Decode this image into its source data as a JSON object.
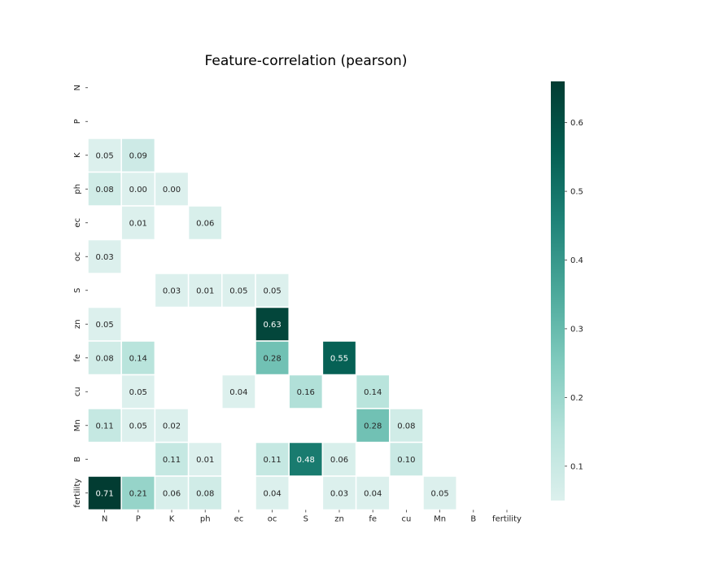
{
  "chart_data": {
    "type": "heatmap",
    "title": "Feature-correlation (pearson)",
    "xlabel": "",
    "ylabel": "",
    "x_categories": [
      "N",
      "P",
      "K",
      "ph",
      "ec",
      "oc",
      "S",
      "zn",
      "fe",
      "cu",
      "Mn",
      "B",
      "fertility"
    ],
    "y_categories": [
      "N",
      "P",
      "K",
      "ph",
      "ec",
      "oc",
      "S",
      "zn",
      "fe",
      "cu",
      "Mn",
      "B",
      "fertility"
    ],
    "values": [
      [
        null,
        null,
        null,
        null,
        null,
        null,
        null,
        null,
        null,
        null,
        null,
        null,
        null
      ],
      [
        null,
        null,
        null,
        null,
        null,
        null,
        null,
        null,
        null,
        null,
        null,
        null,
        null
      ],
      [
        0.05,
        0.09,
        null,
        null,
        null,
        null,
        null,
        null,
        null,
        null,
        null,
        null,
        null
      ],
      [
        0.08,
        0.0,
        0.0,
        null,
        null,
        null,
        null,
        null,
        null,
        null,
        null,
        null,
        null
      ],
      [
        null,
        0.01,
        null,
        0.06,
        null,
        null,
        null,
        null,
        null,
        null,
        null,
        null,
        null
      ],
      [
        0.03,
        null,
        null,
        null,
        null,
        null,
        null,
        null,
        null,
        null,
        null,
        null,
        null
      ],
      [
        null,
        null,
        0.03,
        0.01,
        0.05,
        0.05,
        null,
        null,
        null,
        null,
        null,
        null,
        null
      ],
      [
        0.05,
        null,
        null,
        null,
        null,
        0.63,
        null,
        null,
        null,
        null,
        null,
        null,
        null
      ],
      [
        0.08,
        0.14,
        null,
        null,
        null,
        0.28,
        null,
        0.55,
        null,
        null,
        null,
        null,
        null
      ],
      [
        null,
        0.05,
        null,
        null,
        0.04,
        null,
        0.16,
        null,
        0.14,
        null,
        null,
        null,
        null
      ],
      [
        0.11,
        0.05,
        0.02,
        null,
        null,
        null,
        null,
        null,
        0.28,
        0.08,
        null,
        null,
        null
      ],
      [
        null,
        null,
        0.11,
        0.01,
        null,
        0.11,
        0.48,
        0.06,
        null,
        0.1,
        null,
        null,
        null
      ],
      [
        0.71,
        0.21,
        0.06,
        0.08,
        null,
        0.04,
        null,
        0.03,
        0.04,
        null,
        0.05,
        null,
        null
      ]
    ],
    "colorbar": {
      "vmin": 0.05,
      "vmax": 0.66,
      "ticks": [
        0.1,
        0.2,
        0.3,
        0.4,
        0.5,
        0.6
      ],
      "colors": [
        "#dcf0ed",
        "#b5e2da",
        "#7fcabd",
        "#4aa89a",
        "#1f8378",
        "#045e52",
        "#023c32"
      ]
    },
    "grid": false,
    "legend": "colorbar-right"
  }
}
